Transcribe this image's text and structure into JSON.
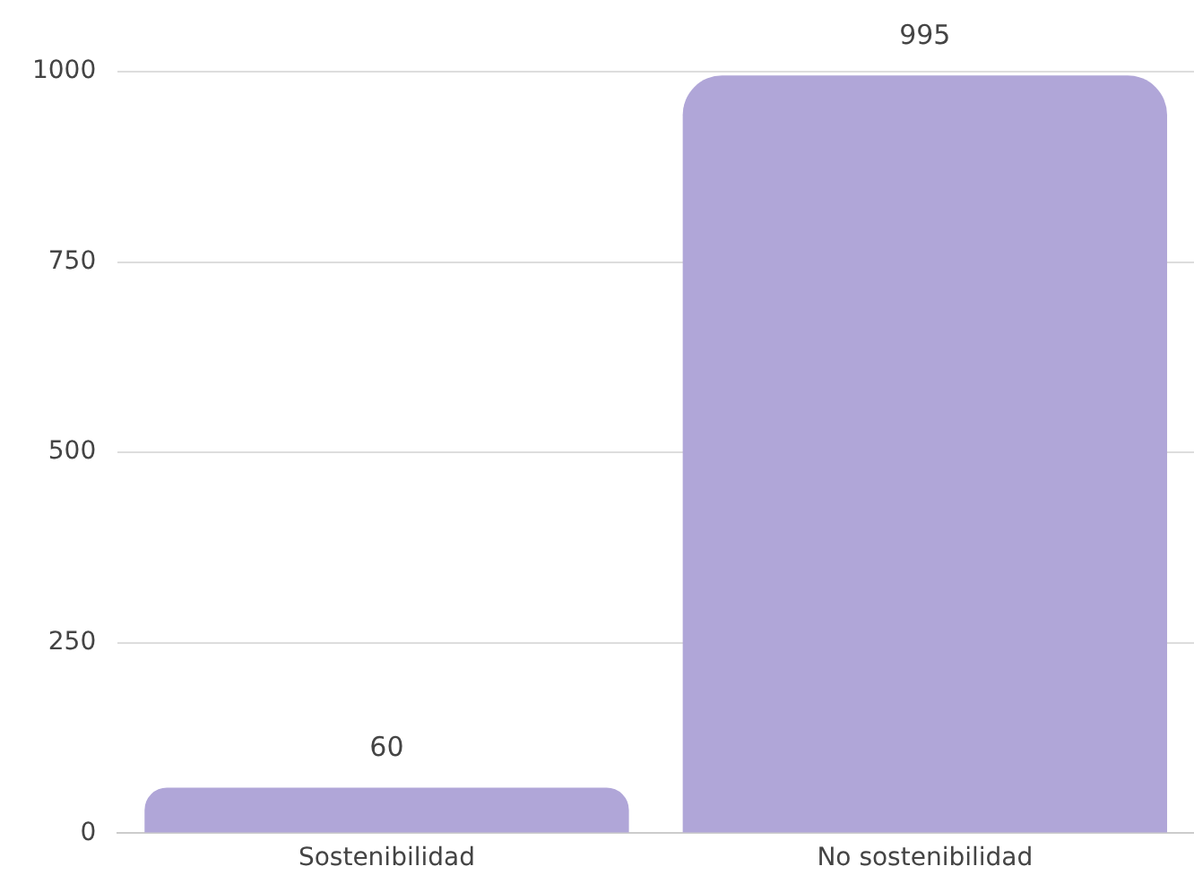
{
  "chart_data": {
    "type": "bar",
    "categories": [
      "Sostenibilidad",
      "No sostenibilidad"
    ],
    "values": [
      60,
      995
    ],
    "color": "#b0a6d8",
    "ylim": [
      0,
      1000
    ],
    "yticks": [
      0,
      250,
      500,
      750,
      1000
    ],
    "grid": "y",
    "data_labels": true,
    "legend": false
  }
}
